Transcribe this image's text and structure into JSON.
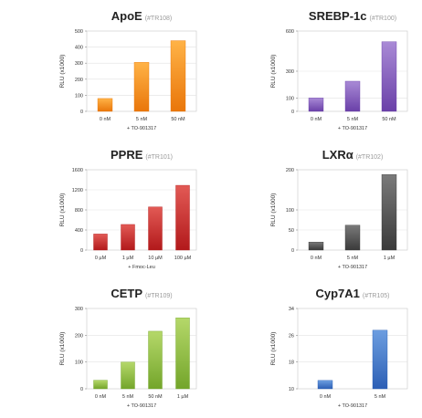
{
  "chart_data": [
    {
      "type": "bar",
      "title": "ApoE",
      "title_code": "(#TR108)",
      "ylabel": "RLU (x1000)",
      "xlabel": "+ TO-901317",
      "categories": [
        "0 nM",
        "5 nM",
        "50 nM"
      ],
      "values": [
        80,
        305,
        440
      ],
      "ylim": [
        0,
        500
      ],
      "yticks": [
        "100",
        "200",
        "300",
        "400",
        "500"
      ],
      "ytick_values": [
        100,
        200,
        300,
        400,
        500
      ],
      "show_zero": true,
      "color_top": "#ffb347",
      "color_bottom": "#e9760a"
    },
    {
      "type": "bar",
      "title": "SREBP-1c",
      "title_code": "(#TR100)",
      "ylabel": "RLU (x1000)",
      "xlabel": "+ TO-901317",
      "categories": [
        "0 nM",
        "5 nM",
        "50 nM"
      ],
      "values": [
        100,
        225,
        520
      ],
      "ylim": [
        0,
        600
      ],
      "yticks": [
        "100",
        "300",
        "600"
      ],
      "ytick_values": [
        100,
        300,
        600
      ],
      "show_zero": true,
      "color_top": "#a98ad6",
      "color_bottom": "#6a40a8"
    },
    {
      "type": "bar",
      "title": "PPRE",
      "title_code": "(#TR101)",
      "ylabel": "RLU (x1000)",
      "xlabel": "+ Fmoc-Leu",
      "categories": [
        "0 µM",
        "1 µM",
        "10 µM",
        "100 µM"
      ],
      "values": [
        320,
        510,
        860,
        1290
      ],
      "ylim": [
        0,
        1600
      ],
      "yticks": [
        "400",
        "800",
        "1200",
        "1600"
      ],
      "ytick_values": [
        400,
        800,
        1200,
        1600
      ],
      "show_zero": true,
      "color_top": "#e25a55",
      "color_bottom": "#b2191b"
    },
    {
      "type": "bar",
      "title": "LXR",
      "title_greek": "α",
      "title_code": "(#TR102)",
      "ylabel": "RLU (x1000)",
      "xlabel": "+ TO-901317",
      "categories": [
        "0 nM",
        "5 nM",
        "1 µM"
      ],
      "values": [
        20,
        62,
        188
      ],
      "ylim": [
        0,
        200
      ],
      "yticks": [
        "50",
        "100",
        "200"
      ],
      "ytick_values": [
        50,
        100,
        200
      ],
      "show_zero": true,
      "color_top": "#7a7a7a",
      "color_bottom": "#3a3a3a"
    },
    {
      "type": "bar",
      "title": "CETP",
      "title_code": "(#TR109)",
      "ylabel": "RLU (x1000)",
      "xlabel": "+ TO-901317",
      "categories": [
        "0 nM",
        "5 nM",
        "50 nM",
        "1 µM"
      ],
      "values": [
        32,
        100,
        215,
        265
      ],
      "ylim": [
        0,
        300
      ],
      "yticks": [
        "100",
        "200",
        "300"
      ],
      "ytick_values": [
        100,
        200,
        300
      ],
      "show_zero": true,
      "color_top": "#b5d86a",
      "color_bottom": "#73a52a"
    },
    {
      "type": "bar",
      "title": "Cyp7A1",
      "title_code": "(#TR105)",
      "ylabel": "RLU (x1000)",
      "xlabel": "+ TO-901317",
      "categories": [
        "0 nM",
        "5 nM"
      ],
      "values": [
        12.5,
        27.5
      ],
      "ylim": [
        10,
        34
      ],
      "yticks": [
        "10",
        "18",
        "26",
        "34"
      ],
      "ytick_values": [
        10,
        18,
        26,
        34
      ],
      "show_zero": false,
      "color_top": "#6d9ee0",
      "color_bottom": "#2c5fb5"
    }
  ]
}
